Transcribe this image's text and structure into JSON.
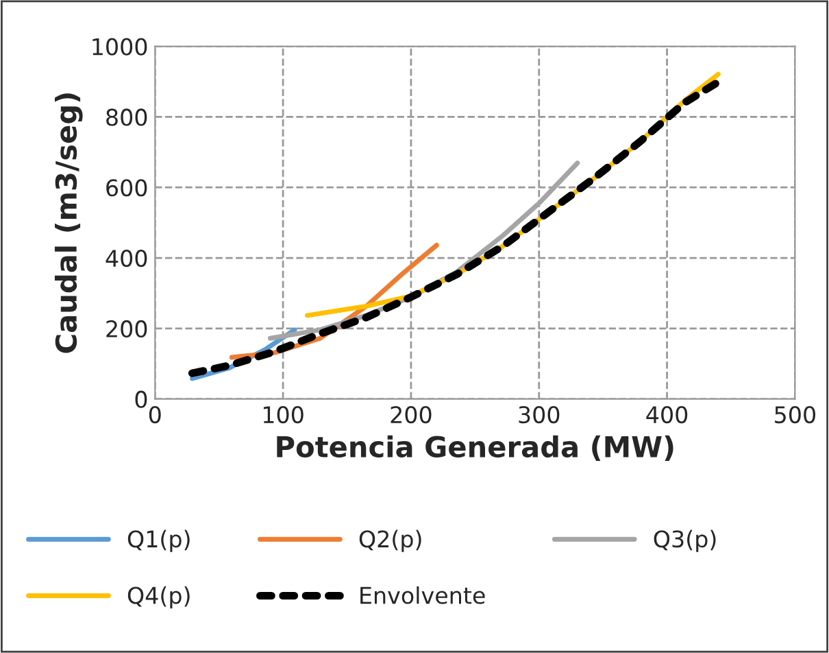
{
  "chart_data": {
    "type": "line",
    "xlabel": "Potencia Generada (MW)",
    "ylabel": "Caudal (m3/seg)",
    "xlim": [
      0,
      500
    ],
    "xticks": [
      0,
      100,
      200,
      300,
      400,
      500
    ],
    "ylim": [
      0,
      1000
    ],
    "yticks": [
      0,
      200,
      400,
      600,
      800,
      1000
    ],
    "grid": true,
    "legend": "bottom",
    "marker": "none",
    "series": [
      {
        "name": "Q1(p)",
        "color": "#5b9bd5",
        "x": [
          29,
          58,
          86,
          109
        ],
        "values": [
          58,
          88,
          140,
          196
        ]
      },
      {
        "name": "Q2(p)",
        "color": "#ed7d31",
        "x": [
          60,
          93,
          129,
          165,
          193,
          220
        ],
        "values": [
          118,
          131,
          172,
          263,
          354,
          436
        ]
      },
      {
        "name": "Q3(p)",
        "color": "#a5a5a5",
        "x": [
          90,
          129,
          165,
          200,
          236,
          272,
          300,
          330
        ],
        "values": [
          172,
          196,
          237,
          289,
          361,
          464,
          555,
          669
        ]
      },
      {
        "name": "Q4(p)",
        "color": "#ffc000",
        "x": [
          119,
          165,
          200,
          236,
          272,
          307,
          343,
          379,
          414,
          440
        ],
        "values": [
          237,
          263,
          292,
          354,
          434,
          529,
          626,
          730,
          847,
          921
        ]
      },
      {
        "name": "Envolvente",
        "color": "#000000",
        "line_style": "dashed",
        "x": [
          29,
          58,
          93,
          129,
          165,
          200,
          236,
          272,
          307,
          343,
          379,
          414,
          440
        ],
        "values": [
          73,
          95,
          134,
          185,
          231,
          289,
          354,
          434,
          529,
          626,
          730,
          841,
          899
        ]
      }
    ]
  }
}
